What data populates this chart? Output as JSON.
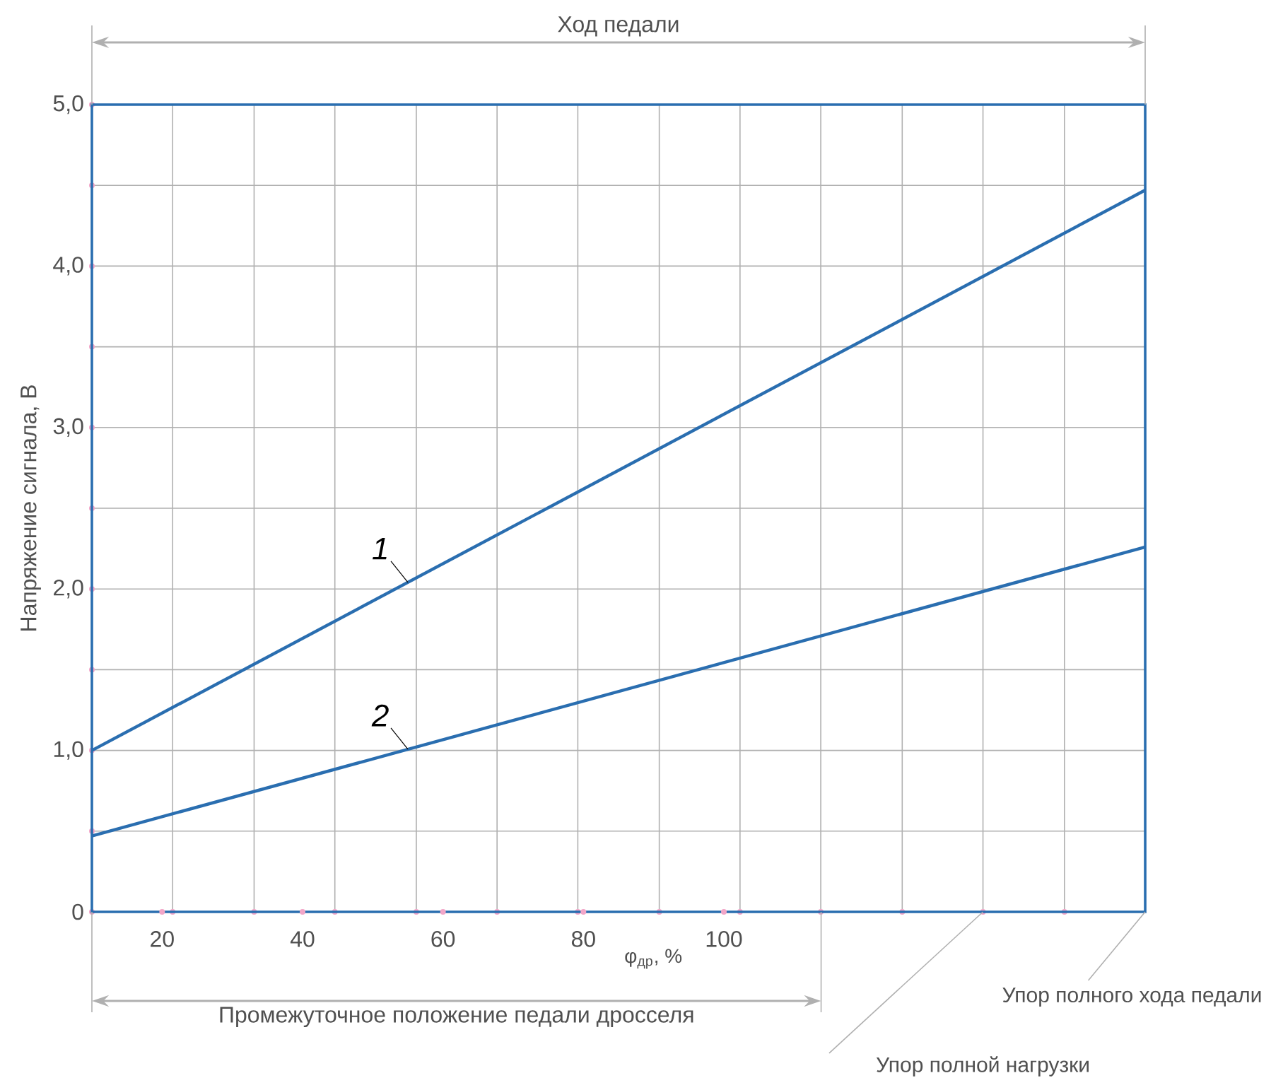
{
  "chart_data": {
    "type": "line",
    "ylabel": "Напряжение сигнала, В",
    "xlabel": "φ$_{др}$, %",
    "x": [
      10,
      160
    ],
    "series": [
      {
        "name": "1",
        "color": "#2a6eb0",
        "values": [
          1.0,
          4.47
        ]
      },
      {
        "name": "2",
        "color": "#2a6eb0",
        "values": [
          0.47,
          2.26
        ]
      }
    ],
    "xlim": [
      10,
      160
    ],
    "ylim": [
      0,
      5
    ],
    "xticks": [
      {
        "value": 21.5,
        "label": null
      },
      {
        "value": 33.1,
        "label": null
      },
      {
        "value": 44.6,
        "label": null
      },
      {
        "value": 56.2,
        "label": null
      },
      {
        "value": 67.7,
        "label": null
      },
      {
        "value": 79.2,
        "label": null
      },
      {
        "value": 90.8,
        "label": null
      },
      {
        "value": 102.3,
        "label": null
      },
      {
        "value": 113.8,
        "label": null
      },
      {
        "value": 125.4,
        "label": null
      },
      {
        "value": 136.9,
        "label": null
      },
      {
        "value": 148.5,
        "label": null
      },
      20,
      40,
      60,
      80,
      100
    ],
    "yticks": [
      {
        "value": 0,
        "label": "0"
      },
      {
        "value": 0.5,
        "label": null
      },
      {
        "value": 1,
        "label": "1,0"
      },
      {
        "value": 1.5,
        "label": null
      },
      {
        "value": 2,
        "label": "2,0"
      },
      {
        "value": 2.5,
        "label": null
      },
      {
        "value": 3,
        "label": "3,0"
      },
      {
        "value": 3.5,
        "label": null
      },
      {
        "value": 4,
        "label": "4,0"
      },
      {
        "value": 4.5,
        "label": null
      },
      {
        "value": 5,
        "label": "5,0"
      }
    ],
    "grid": true,
    "annotations": [
      "Ход педали",
      "Промежуточное положение педали дросселя",
      "Упор полной нагрузки",
      "Упор полного хода педали"
    ]
  }
}
